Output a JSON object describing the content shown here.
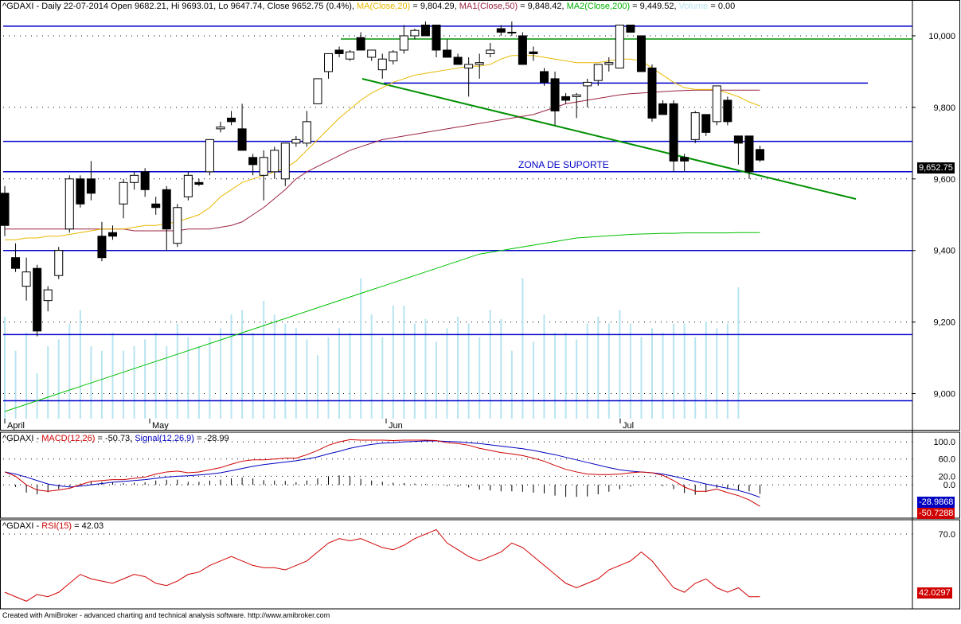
{
  "header": {
    "ticker": "^GDAXI",
    "period": "Daily",
    "date": "22-07-2014",
    "open_label": "Open",
    "open": "9682.21",
    "hi_label": "Hi",
    "hi": "9693.01",
    "lo_label": "Lo",
    "lo": "9647.74",
    "close_label": "Close",
    "close": "9652.75",
    "change": "(0.4%)",
    "ma_label": "MA(Close,20)",
    "ma_value": "9,804.29",
    "ma1_label": "MA1(Close,50)",
    "ma1_value": "9,848.42",
    "ma2_label": "MA2(Close,200)",
    "ma2_value": "9,449.52",
    "volume_label": "Volume",
    "volume_value": "0.00"
  },
  "colors": {
    "ma20": "#E8B800",
    "ma50": "#9B2340",
    "ma200": "#00C000",
    "volume": "#B8E4F0",
    "blue_line": "#0000C8",
    "green_line": "#009000",
    "macd": "#D00000",
    "signal": "#0000C0",
    "rsi": "#D00000",
    "price_tag": "#000000"
  },
  "annotation": "ZONA DE SUPORTE",
  "last_price_tag": "9,652.75",
  "macd_header": {
    "ticker": "^GDAXI",
    "macd_label": "MACD(12,26)",
    "macd_value": "-50.73",
    "signal_label": "Signal(12,26,9)",
    "signal_value": "-28.99"
  },
  "macd_tags": {
    "signal": "-28.9868",
    "macd": "-50.7288"
  },
  "rsi_header": {
    "ticker": "^GDAXI",
    "rsi_label": "RSI(15)",
    "rsi_value": "42.03"
  },
  "rsi_tag": "42.0297",
  "footer": "Created with AmiBroker - advanced charting and technical analysis software. http://www.amibroker.com",
  "chart_data": [
    {
      "type": "candlestick",
      "title": "^GDAXI - Daily 22-07-2014",
      "x_labels": [
        "April",
        "May",
        "Jun",
        "Jul"
      ],
      "y_ticks": [
        9000,
        9200,
        9400,
        9600,
        9800,
        10000
      ],
      "y_tick_labels": [
        "9,000",
        "9,200",
        "9,400",
        "9,600",
        "9,800",
        "10,000"
      ],
      "ylim": [
        8930,
        10060
      ],
      "candles": [
        {
          "o": 9560,
          "h": 9580,
          "l": 9440,
          "c": 9470
        },
        {
          "o": 9380,
          "h": 9420,
          "l": 9340,
          "c": 9350
        },
        {
          "o": 9300,
          "h": 9380,
          "l": 9260,
          "c": 9340
        },
        {
          "o": 9350,
          "h": 9360,
          "l": 9160,
          "c": 9175
        },
        {
          "o": 9260,
          "h": 9300,
          "l": 9230,
          "c": 9290
        },
        {
          "o": 9330,
          "h": 9410,
          "l": 9320,
          "c": 9400
        },
        {
          "o": 9460,
          "h": 9610,
          "l": 9450,
          "c": 9600
        },
        {
          "o": 9600,
          "h": 9610,
          "l": 9520,
          "c": 9530
        },
        {
          "o": 9600,
          "h": 9650,
          "l": 9540,
          "c": 9560
        },
        {
          "o": 9440,
          "h": 9480,
          "l": 9370,
          "c": 9380
        },
        {
          "o": 9450,
          "h": 9470,
          "l": 9430,
          "c": 9440
        },
        {
          "o": 9530,
          "h": 9600,
          "l": 9490,
          "c": 9590
        },
        {
          "o": 9590,
          "h": 9620,
          "l": 9570,
          "c": 9610
        },
        {
          "o": 9620,
          "h": 9630,
          "l": 9550,
          "c": 9570
        },
        {
          "o": 9530,
          "h": 9550,
          "l": 9500,
          "c": 9520
        },
        {
          "o": 9570,
          "h": 9580,
          "l": 9400,
          "c": 9460
        },
        {
          "o": 9420,
          "h": 9530,
          "l": 9410,
          "c": 9520
        },
        {
          "o": 9550,
          "h": 9620,
          "l": 9540,
          "c": 9610
        },
        {
          "o": 9590,
          "h": 9600,
          "l": 9580,
          "c": 9585
        },
        {
          "o": 9620,
          "h": 9710,
          "l": 9610,
          "c": 9710
        },
        {
          "o": 9740,
          "h": 9760,
          "l": 9730,
          "c": 9745
        },
        {
          "o": 9770,
          "h": 9790,
          "l": 9750,
          "c": 9760
        },
        {
          "o": 9740,
          "h": 9810,
          "l": 9680,
          "c": 9680
        },
        {
          "o": 9660,
          "h": 9670,
          "l": 9610,
          "c": 9640
        },
        {
          "o": 9610,
          "h": 9680,
          "l": 9540,
          "c": 9660
        },
        {
          "o": 9620,
          "h": 9690,
          "l": 9600,
          "c": 9680
        },
        {
          "o": 9600,
          "h": 9700,
          "l": 9580,
          "c": 9700
        },
        {
          "o": 9700,
          "h": 9720,
          "l": 9690,
          "c": 9710
        },
        {
          "o": 9700,
          "h": 9790,
          "l": 9690,
          "c": 9760
        },
        {
          "o": 9810,
          "h": 9880,
          "l": 9810,
          "c": 9880
        },
        {
          "o": 9900,
          "h": 9950,
          "l": 9880,
          "c": 9950
        },
        {
          "o": 9960,
          "h": 9970,
          "l": 9940,
          "c": 9950
        },
        {
          "o": 9935,
          "h": 9960,
          "l": 9930,
          "c": 9955
        },
        {
          "o": 9995,
          "h": 10010,
          "l": 9960,
          "c": 9960
        },
        {
          "o": 9940,
          "h": 9960,
          "l": 9930,
          "c": 9960
        },
        {
          "o": 9905,
          "h": 9950,
          "l": 9880,
          "c": 9935
        },
        {
          "o": 9930,
          "h": 9960,
          "l": 9920,
          "c": 9955
        },
        {
          "o": 9960,
          "h": 10030,
          "l": 9950,
          "c": 10000
        },
        {
          "o": 10000,
          "h": 10020,
          "l": 9990,
          "c": 10015
        },
        {
          "o": 10030,
          "h": 10040,
          "l": 10000,
          "c": 10000
        },
        {
          "o": 10030,
          "h": 10030,
          "l": 9940,
          "c": 9960
        },
        {
          "o": 9960,
          "h": 9990,
          "l": 9940,
          "c": 9940
        },
        {
          "o": 9940,
          "h": 9950,
          "l": 9920,
          "c": 9920
        },
        {
          "o": 9910,
          "h": 9940,
          "l": 9830,
          "c": 9920
        },
        {
          "o": 9920,
          "h": 9950,
          "l": 9880,
          "c": 9925
        },
        {
          "o": 9950,
          "h": 9980,
          "l": 9940,
          "c": 9960
        },
        {
          "o": 10020,
          "h": 10030,
          "l": 10000,
          "c": 10010
        },
        {
          "o": 10010,
          "h": 10040,
          "l": 10000,
          "c": 10010
        },
        {
          "o": 10000,
          "h": 10010,
          "l": 9920,
          "c": 9920
        },
        {
          "o": 9955,
          "h": 9970,
          "l": 9930,
          "c": 9950
        },
        {
          "o": 9900,
          "h": 9910,
          "l": 9860,
          "c": 9870
        },
        {
          "o": 9880,
          "h": 9900,
          "l": 9750,
          "c": 9790
        },
        {
          "o": 9830,
          "h": 9840,
          "l": 9810,
          "c": 9820
        },
        {
          "o": 9830,
          "h": 9840,
          "l": 9770,
          "c": 9835
        },
        {
          "o": 9860,
          "h": 9880,
          "l": 9800,
          "c": 9870
        },
        {
          "o": 9875,
          "h": 9920,
          "l": 9860,
          "c": 9920
        },
        {
          "o": 9920,
          "h": 9940,
          "l": 9900,
          "c": 9925
        },
        {
          "o": 9910,
          "h": 10030,
          "l": 9910,
          "c": 10030
        },
        {
          "o": 10030,
          "h": 10030,
          "l": 10010,
          "c": 10010
        },
        {
          "o": 10000,
          "h": 10000,
          "l": 9900,
          "c": 9900
        },
        {
          "o": 9910,
          "h": 9920,
          "l": 9760,
          "c": 9770
        },
        {
          "o": 9810,
          "h": 9820,
          "l": 9780,
          "c": 9780
        },
        {
          "o": 9810,
          "h": 9820,
          "l": 9620,
          "c": 9650
        },
        {
          "o": 9660,
          "h": 9670,
          "l": 9620,
          "c": 9650
        },
        {
          "o": 9710,
          "h": 9790,
          "l": 9700,
          "c": 9785
        },
        {
          "o": 9780,
          "h": 9780,
          "l": 9720,
          "c": 9730
        },
        {
          "o": 9760,
          "h": 9860,
          "l": 9750,
          "c": 9860
        },
        {
          "o": 9820,
          "h": 9830,
          "l": 9750,
          "c": 9760
        },
        {
          "o": 9720,
          "h": 9720,
          "l": 9640,
          "c": 9700
        },
        {
          "o": 9720,
          "h": 9720,
          "l": 9600,
          "c": 9620
        },
        {
          "o": 9682.21,
          "h": 9693.01,
          "l": 9647.74,
          "c": 9652.75
        }
      ],
      "series": [
        {
          "name": "MA(Close,20)",
          "values": [
            9430,
            9430,
            9435,
            9435,
            9440,
            9440,
            9445,
            9450,
            9455,
            9460,
            9460,
            9460,
            9465,
            9470,
            9470,
            9475,
            9480,
            9490,
            9500,
            9520,
            9550,
            9570,
            9590,
            9600,
            9610,
            9620,
            9630,
            9650,
            9680,
            9710,
            9740,
            9770,
            9795,
            9820,
            9840,
            9855,
            9870,
            9880,
            9890,
            9895,
            9900,
            9905,
            9910,
            9915,
            9915,
            9920,
            9935,
            9945,
            9945,
            9945,
            9940,
            9935,
            9930,
            9925,
            9925,
            9925,
            9930,
            9935,
            9935,
            9930,
            9910,
            9890,
            9870,
            9855,
            9850,
            9850,
            9850,
            9840,
            9830,
            9815,
            9804
          ]
        },
        {
          "name": "MA1(Close,50)",
          "values": [
            9460,
            9460,
            9460,
            9460,
            9460,
            9460,
            9460,
            9460,
            9460,
            9460,
            9460,
            9460,
            9455,
            9455,
            9455,
            9455,
            9455,
            9460,
            9460,
            9460,
            9465,
            9470,
            9480,
            9500,
            9520,
            9545,
            9570,
            9600,
            9620,
            9635,
            9650,
            9665,
            9680,
            9690,
            9700,
            9710,
            9715,
            9720,
            9725,
            9730,
            9735,
            9740,
            9745,
            9750,
            9755,
            9760,
            9765,
            9770,
            9775,
            9780,
            9790,
            9800,
            9810,
            9815,
            9820,
            9825,
            9830,
            9835,
            9838,
            9840,
            9842,
            9844,
            9846,
            9847,
            9848,
            9848,
            9848,
            9848,
            9848,
            9848,
            9848
          ]
        },
        {
          "name": "MA2(Close,200)",
          "values": [
            8950,
            8960,
            8970,
            8980,
            8990,
            9000,
            9010,
            9020,
            9030,
            9040,
            9050,
            9060,
            9070,
            9080,
            9090,
            9100,
            9110,
            9120,
            9130,
            9140,
            9150,
            9160,
            9170,
            9180,
            9190,
            9200,
            9210,
            9220,
            9230,
            9240,
            9250,
            9260,
            9270,
            9280,
            9290,
            9300,
            9310,
            9320,
            9330,
            9340,
            9350,
            9360,
            9370,
            9380,
            9390,
            9395,
            9400,
            9405,
            9410,
            9415,
            9420,
            9425,
            9430,
            9435,
            9437,
            9439,
            9441,
            9443,
            9445,
            9446,
            9447,
            9448,
            9448,
            9449,
            9449,
            9449,
            9449,
            9449,
            9450,
            9450,
            9450
          ]
        },
        {
          "name": "Volume",
          "values": [
            0.45,
            0.3,
            0.38,
            0.2,
            0.32,
            0.35,
            0.42,
            0.48,
            0.32,
            0.3,
            0.38,
            0.3,
            0.32,
            0.35,
            0.38,
            0.32,
            0.42,
            0.36,
            0.32,
            0.36,
            0.4,
            0.46,
            0.48,
            0.38,
            0.52,
            0.46,
            0.42,
            0.4,
            0.35,
            0.28,
            0.36,
            0.4,
            0.38,
            0.62,
            0.46,
            0.36,
            0.5,
            0.5,
            0.42,
            0.44,
            0.34,
            0.4,
            0.45,
            0.42,
            0.36,
            0.48,
            0.44,
            0.3,
            0.62,
            0.34,
            0.46,
            0.38,
            0.38,
            0.35,
            0.42,
            0.45,
            0.42,
            0.48,
            0.42,
            0.36,
            0.4,
            0.38,
            0.42,
            0.42,
            0.36,
            0.43,
            0.4,
            0.42,
            0.58,
            0.0,
            0.0
          ]
        }
      ],
      "horizontal_lines": [
        10027,
        9705,
        9620,
        9400,
        9165,
        8980,
        9868
      ],
      "annotations": [
        "ZONA DE SUPORTE"
      ]
    },
    {
      "type": "line",
      "title": "^GDAXI - MACD(12,26) = -50.73, Signal(12,26,9) = -28.99",
      "y_ticks": [
        0,
        20,
        60,
        100
      ],
      "y_tick_labels": [
        "0.0",
        "20.0",
        "60.0",
        "100.0"
      ],
      "ylim": [
        -70,
        115
      ],
      "series": [
        {
          "name": "MACD(12,26)",
          "values": [
            30,
            20,
            0,
            -12,
            -15,
            -12,
            -8,
            0,
            8,
            10,
            12,
            12,
            15,
            18,
            25,
            30,
            32,
            28,
            30,
            35,
            40,
            48,
            55,
            58,
            58,
            60,
            62,
            62,
            70,
            80,
            92,
            100,
            105,
            104,
            104,
            104,
            103,
            104,
            104,
            104,
            103,
            98,
            96,
            92,
            85,
            80,
            75,
            72,
            68,
            62,
            55,
            45,
            36,
            30,
            25,
            24,
            24,
            25,
            28,
            30,
            28,
            22,
            10,
            -5,
            -15,
            -15,
            -10,
            -18,
            -25,
            -35,
            -50
          ]
        },
        {
          "name": "Signal(12,26,9)",
          "values": [
            30,
            25,
            18,
            10,
            2,
            -2,
            -5,
            -3,
            0,
            3,
            6,
            8,
            10,
            12,
            15,
            18,
            20,
            21,
            23,
            25,
            28,
            33,
            38,
            43,
            47,
            50,
            53,
            56,
            60,
            65,
            72,
            78,
            85,
            90,
            94,
            97,
            98,
            100,
            101,
            102,
            102,
            101,
            100,
            98,
            96,
            93,
            90,
            87,
            84,
            80,
            75,
            70,
            64,
            58,
            52,
            46,
            40,
            35,
            32,
            30,
            28,
            25,
            20,
            14,
            8,
            2,
            -3,
            -8,
            -13,
            -20,
            -29
          ]
        }
      ]
    },
    {
      "type": "line",
      "title": "^GDAXI - RSI(15) = 42.03",
      "y_ticks": [
        70
      ],
      "y_tick_labels": [
        "70.0"
      ],
      "ylim": [
        38,
        75
      ],
      "series": [
        {
          "name": "RSI(15)",
          "values": [
            44,
            42,
            40,
            43,
            42,
            44,
            48,
            52,
            50,
            49,
            48,
            50,
            52,
            51,
            48,
            47,
            49,
            52,
            53,
            56,
            58,
            60,
            58,
            56,
            55,
            55,
            54,
            56,
            58,
            62,
            66,
            68,
            67,
            68,
            66,
            64,
            63,
            65,
            68,
            70,
            72,
            66,
            63,
            60,
            58,
            60,
            62,
            66,
            64,
            60,
            56,
            52,
            48,
            46,
            48,
            50,
            54,
            56,
            58,
            62,
            58,
            52,
            46,
            44,
            48,
            50,
            46,
            44,
            46,
            42,
            42
          ]
        }
      ]
    }
  ]
}
